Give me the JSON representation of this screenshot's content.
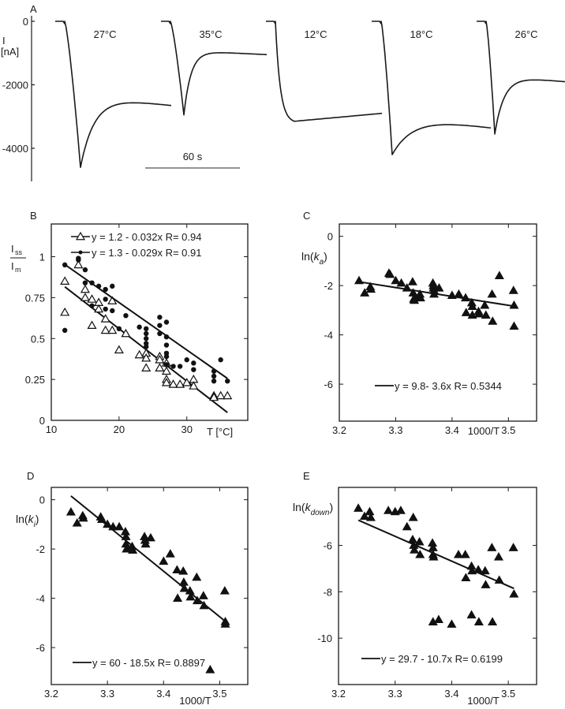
{
  "chart_data": [
    {
      "panel": "A",
      "type": "line",
      "ylabel": "I [nA]",
      "yticks": [
        0,
        -2000,
        -4000
      ],
      "ylim": [
        -5200,
        0
      ],
      "scale_bar": "60 s",
      "series": [
        {
          "name": "27°C",
          "label": "27°C",
          "baseline": 0,
          "peak": -4600,
          "steady_state": -2650
        },
        {
          "name": "35°C",
          "label": "35°C",
          "baseline": 0,
          "peak": -2950,
          "steady_state": -1050
        },
        {
          "name": "12°C",
          "label": "12°C",
          "baseline": 0,
          "peak": -3150,
          "steady_state": -2900
        },
        {
          "name": "18°C",
          "label": "18°C",
          "baseline": 0,
          "peak": -4200,
          "steady_state": -3350
        },
        {
          "name": "26°C",
          "label": "26°C",
          "baseline": 0,
          "peak": -3550,
          "steady_state": -1950
        }
      ]
    },
    {
      "panel": "B",
      "type": "scatter",
      "ylabel_num": "I",
      "ylabel_num_sub": "ss",
      "ylabel_den": "I",
      "ylabel_den_sub": "m",
      "xlabel": "T [°C]",
      "xlim": [
        10,
        39
      ],
      "ylim": [
        0,
        1.2
      ],
      "xticks": [
        10,
        20,
        30
      ],
      "yticks": [
        0,
        0.25,
        0.5,
        0.75,
        1
      ],
      "ytick_labels": [
        "0",
        "0.25",
        "0.5",
        "0.75",
        "1"
      ],
      "series": [
        {
          "name": "triangles",
          "marker": "open-triangle",
          "legend": "y = 1.2 - 0.032x   R= 0.94",
          "fit": {
            "intercept": 1.2,
            "slope": -0.032,
            "x": [
              12,
              36
            ]
          },
          "points": [
            [
              12,
              0.85
            ],
            [
              12,
              0.66
            ],
            [
              14,
              0.95
            ],
            [
              15,
              0.8
            ],
            [
              15,
              0.75
            ],
            [
              16,
              0.74
            ],
            [
              16,
              0.58
            ],
            [
              17,
              0.72
            ],
            [
              17,
              0.68
            ],
            [
              18,
              0.62
            ],
            [
              18,
              0.55
            ],
            [
              19,
              0.73
            ],
            [
              19,
              0.55
            ],
            [
              20,
              0.43
            ],
            [
              21,
              0.53
            ],
            [
              23,
              0.4
            ],
            [
              24,
              0.41
            ],
            [
              24,
              0.38
            ],
            [
              24,
              0.32
            ],
            [
              26,
              0.39
            ],
            [
              26,
              0.37
            ],
            [
              26,
              0.32
            ],
            [
              27,
              0.35
            ],
            [
              27,
              0.3
            ],
            [
              27,
              0.25
            ],
            [
              27,
              0.23
            ],
            [
              28,
              0.22
            ],
            [
              29,
              0.22
            ],
            [
              30,
              0.23
            ],
            [
              31,
              0.25
            ],
            [
              31,
              0.21
            ],
            [
              34,
              0.15
            ],
            [
              34,
              0.14
            ],
            [
              35,
              0.15
            ],
            [
              36,
              0.15
            ]
          ]
        },
        {
          "name": "dots",
          "marker": "filled-circle",
          "legend": "y = 1.3 - 0.029x   R= 0.91",
          "fit": {
            "intercept": 1.3,
            "slope": -0.029,
            "x": [
              12,
              36
            ]
          },
          "points": [
            [
              12,
              0.95
            ],
            [
              12,
              0.55
            ],
            [
              14,
              0.99
            ],
            [
              14,
              0.98
            ],
            [
              15,
              0.92
            ],
            [
              15,
              0.84
            ],
            [
              16,
              0.84
            ],
            [
              16,
              0.7
            ],
            [
              17,
              0.82
            ],
            [
              18,
              0.8
            ],
            [
              18,
              0.74
            ],
            [
              18,
              0.68
            ],
            [
              19,
              0.82
            ],
            [
              19,
              0.67
            ],
            [
              20,
              0.56
            ],
            [
              21,
              0.64
            ],
            [
              23,
              0.57
            ],
            [
              24,
              0.56
            ],
            [
              24,
              0.53
            ],
            [
              24,
              0.5
            ],
            [
              24,
              0.47
            ],
            [
              24,
              0.45
            ],
            [
              26,
              0.63
            ],
            [
              26,
              0.58
            ],
            [
              26,
              0.53
            ],
            [
              27,
              0.6
            ],
            [
              27,
              0.51
            ],
            [
              27,
              0.46
            ],
            [
              27,
              0.41
            ],
            [
              27,
              0.39
            ],
            [
              27,
              0.34
            ],
            [
              28,
              0.33
            ],
            [
              29,
              0.33
            ],
            [
              30,
              0.37
            ],
            [
              31,
              0.35
            ],
            [
              31,
              0.31
            ],
            [
              34,
              0.3
            ],
            [
              34,
              0.27
            ],
            [
              34,
              0.24
            ],
            [
              35,
              0.37
            ],
            [
              36,
              0.24
            ]
          ]
        }
      ]
    },
    {
      "panel": "C",
      "type": "scatter",
      "ylabel_pre": "ln(k",
      "ylabel_sub": "a",
      "ylabel_post": ")",
      "xlabel": "1000/T",
      "xlim": [
        3.2,
        3.55
      ],
      "ylim": [
        -7.5,
        0.5
      ],
      "xticks": [
        3.2,
        3.3,
        3.4,
        3.5
      ],
      "yticks": [
        0,
        -2,
        -4,
        -6
      ],
      "legend": "y = 9.8- 3.6x   R= 0.5344",
      "fit": {
        "intercept": 9.8,
        "slope": -3.6,
        "x": [
          3.235,
          3.51
        ]
      },
      "points": [
        [
          3.235,
          -1.8
        ],
        [
          3.245,
          -2.3
        ],
        [
          3.255,
          -2.05
        ],
        [
          3.256,
          -2.15
        ],
        [
          3.288,
          -1.5
        ],
        [
          3.29,
          -1.55
        ],
        [
          3.3,
          -1.8
        ],
        [
          3.31,
          -1.9
        ],
        [
          3.32,
          -2.1
        ],
        [
          3.33,
          -1.85
        ],
        [
          3.331,
          -2.3
        ],
        [
          3.332,
          -2.55
        ],
        [
          3.333,
          -2.6
        ],
        [
          3.335,
          -2.45
        ],
        [
          3.343,
          -2.35
        ],
        [
          3.344,
          -2.5
        ],
        [
          3.366,
          -1.9
        ],
        [
          3.367,
          -2.0
        ],
        [
          3.367,
          -2.1
        ],
        [
          3.368,
          -2.2
        ],
        [
          3.368,
          -2.35
        ],
        [
          3.377,
          -2.1
        ],
        [
          3.4,
          -2.4
        ],
        [
          3.412,
          -2.35
        ],
        [
          3.424,
          -2.5
        ],
        [
          3.425,
          -3.1
        ],
        [
          3.435,
          -2.7
        ],
        [
          3.436,
          -2.85
        ],
        [
          3.436,
          -3.2
        ],
        [
          3.447,
          -3.05
        ],
        [
          3.448,
          -3.15
        ],
        [
          3.458,
          -2.8
        ],
        [
          3.46,
          -3.2
        ],
        [
          3.471,
          -2.35
        ],
        [
          3.472,
          -3.45
        ],
        [
          3.484,
          -1.6
        ],
        [
          3.509,
          -2.2
        ],
        [
          3.51,
          -2.8
        ],
        [
          3.51,
          -3.65
        ]
      ]
    },
    {
      "panel": "D",
      "type": "scatter",
      "ylabel_pre": "ln(k",
      "ylabel_sub": "i",
      "ylabel_post": ")",
      "xlabel": "1000/T",
      "xlim": [
        3.2,
        3.55
      ],
      "ylim": [
        -7.5,
        0.5
      ],
      "xticks": [
        3.2,
        3.3,
        3.4,
        3.5
      ],
      "yticks": [
        0,
        -2,
        -4,
        -6
      ],
      "legend": "y = 60 - 18.5x   R= 0.8897",
      "fit": {
        "intercept": 60,
        "slope": -18.5,
        "x": [
          3.235,
          3.51
        ]
      },
      "points": [
        [
          3.235,
          -0.5
        ],
        [
          3.246,
          -0.95
        ],
        [
          3.256,
          -0.65
        ],
        [
          3.257,
          -0.75
        ],
        [
          3.288,
          -0.7
        ],
        [
          3.29,
          -0.8
        ],
        [
          3.3,
          -1.0
        ],
        [
          3.31,
          -1.1
        ],
        [
          3.321,
          -1.1
        ],
        [
          3.332,
          -1.3
        ],
        [
          3.333,
          -1.5
        ],
        [
          3.333,
          -1.8
        ],
        [
          3.334,
          -2.0
        ],
        [
          3.344,
          -1.9
        ],
        [
          3.345,
          -2.05
        ],
        [
          3.366,
          -1.5
        ],
        [
          3.367,
          -1.65
        ],
        [
          3.368,
          -1.8
        ],
        [
          3.377,
          -1.55
        ],
        [
          3.4,
          -2.5
        ],
        [
          3.412,
          -2.2
        ],
        [
          3.424,
          -2.85
        ],
        [
          3.425,
          -4.0
        ],
        [
          3.435,
          -2.9
        ],
        [
          3.436,
          -3.35
        ],
        [
          3.437,
          -3.6
        ],
        [
          3.447,
          -3.7
        ],
        [
          3.448,
          -3.95
        ],
        [
          3.459,
          -3.15
        ],
        [
          3.46,
          -4.1
        ],
        [
          3.471,
          -3.9
        ],
        [
          3.472,
          -4.3
        ],
        [
          3.483,
          -6.9
        ],
        [
          3.509,
          -3.7
        ],
        [
          3.51,
          -4.95
        ],
        [
          3.51,
          -5.05
        ]
      ]
    },
    {
      "panel": "E",
      "type": "scatter",
      "ylabel_pre": "ln(k",
      "ylabel_sub": "down",
      "ylabel_post": ")",
      "xlabel": "1000/T",
      "xlim": [
        3.2,
        3.55
      ],
      "ylim": [
        -12,
        -3.5
      ],
      "xticks": [
        3.2,
        3.3,
        3.4,
        3.5
      ],
      "yticks": [
        -6,
        -8,
        -10
      ],
      "legend": "y = 29.7 - 10.7x   R= 0.6199",
      "fit": {
        "intercept": 29.7,
        "slope": -10.7,
        "x": [
          3.235,
          3.51
        ]
      },
      "points": [
        [
          3.235,
          -4.4
        ],
        [
          3.246,
          -4.75
        ],
        [
          3.255,
          -4.55
        ],
        [
          3.257,
          -4.8
        ],
        [
          3.288,
          -4.5
        ],
        [
          3.3,
          -4.55
        ],
        [
          3.31,
          -4.5
        ],
        [
          3.321,
          -5.2
        ],
        [
          3.331,
          -5.75
        ],
        [
          3.332,
          -4.8
        ],
        [
          3.333,
          -6.0
        ],
        [
          3.334,
          -6.2
        ],
        [
          3.343,
          -5.85
        ],
        [
          3.344,
          -6.4
        ],
        [
          3.366,
          -5.9
        ],
        [
          3.367,
          -6.1
        ],
        [
          3.367,
          -6.4
        ],
        [
          3.368,
          -6.5
        ],
        [
          3.367,
          -9.3
        ],
        [
          3.377,
          -9.2
        ],
        [
          3.4,
          -9.4
        ],
        [
          3.412,
          -6.4
        ],
        [
          3.424,
          -6.4
        ],
        [
          3.425,
          -7.4
        ],
        [
          3.435,
          -6.9
        ],
        [
          3.436,
          -7.1
        ],
        [
          3.435,
          -9.0
        ],
        [
          3.447,
          -7.05
        ],
        [
          3.448,
          -9.3
        ],
        [
          3.459,
          -7.1
        ],
        [
          3.46,
          -7.7
        ],
        [
          3.471,
          -6.1
        ],
        [
          3.472,
          -9.3
        ],
        [
          3.483,
          -6.5
        ],
        [
          3.484,
          -7.5
        ],
        [
          3.509,
          -6.1
        ],
        [
          3.51,
          -8.1
        ]
      ]
    }
  ]
}
